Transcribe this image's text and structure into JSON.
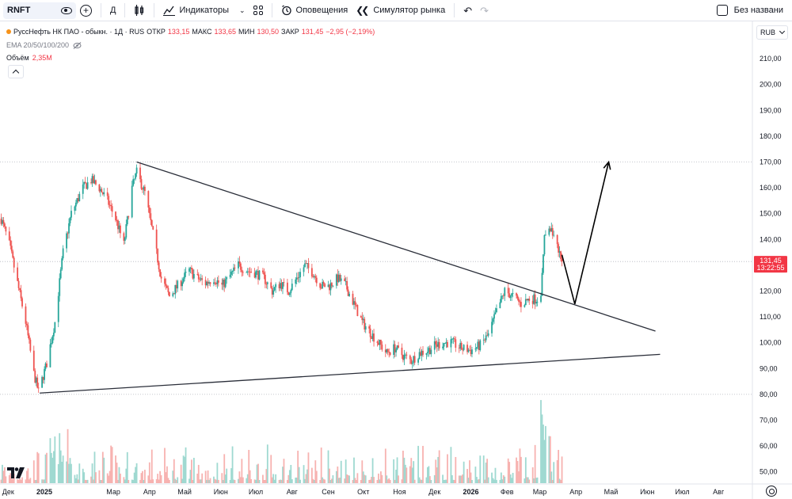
{
  "toolbar": {
    "symbol": "RNFT",
    "interval": "Д",
    "indicators_label": "Индикаторы",
    "alerts_label": "Оповещения",
    "replay_label": "Симулятор рынка",
    "hide_label": "Без названи"
  },
  "legend": {
    "title": "РуссНефть НК ПАО - обыкн. · 1Д · RUS",
    "open_label": "ОТКР",
    "open": "133,15",
    "high_label": "МАКС",
    "high": "133,65",
    "low_label": "МИН",
    "low": "130,50",
    "close_label": "ЗАКР",
    "close": "131,45",
    "change": "−2,95 (−2,19%)",
    "ema_label": "EMA 20/50/100/200",
    "volume_label": "Объём",
    "volume_value": "2,35M"
  },
  "price_scale": {
    "currency": "RUB",
    "last_price": "131,45",
    "countdown": "13:22:55"
  },
  "colors": {
    "up": "#26a69a",
    "down": "#ef5350",
    "up_volume": "#9fd9d1",
    "down_volume": "#f7b2b0",
    "trendline": "#2a2e39",
    "badge": "#f23645"
  },
  "icons": [
    "eye-icon",
    "add-compare-icon",
    "candles-icon",
    "indicators-icon",
    "chevron-down-icon",
    "layouts-icon",
    "alert-icon",
    "replay-icon",
    "undo-icon",
    "redo-icon",
    "checkbox-icon",
    "eye-crossed-icon",
    "chevron-up-icon",
    "tradingview-logo-icon",
    "settings-icon"
  ],
  "chart_data": {
    "type": "candlestick",
    "title": "РуссНефть НК ПАО - обыкн. · 1Д · RUS",
    "y_axis": {
      "ticks": [
        "50,00",
        "60,00",
        "70,00",
        "80,00",
        "90,00",
        "100,00",
        "110,00",
        "120,00",
        "130,00",
        "140,00",
        "150,00",
        "160,00",
        "170,00",
        "180,00",
        "190,00",
        "200,00",
        "210,00"
      ],
      "range": [
        45,
        218
      ]
    },
    "x_axis": {
      "labels": [
        "Дек",
        "2025",
        "Мар",
        "Апр",
        "Май",
        "Июн",
        "Июл",
        "Авг",
        "Сен",
        "Окт",
        "Ноя",
        "Дек",
        "2026",
        "Фев",
        "Мар",
        "Апр",
        "Май",
        "Июн",
        "Июл",
        "Авг"
      ],
      "range": [
        "2024-11-24",
        "2026-08-30"
      ]
    },
    "price_path": [
      [
        "2024-11-25",
        148
      ],
      [
        "2024-12-02",
        138
      ],
      [
        "2024-12-09",
        123
      ],
      [
        "2024-12-16",
        108
      ],
      [
        "2024-12-23",
        88
      ],
      [
        "2024-12-27",
        81
      ],
      [
        "2025-01-03",
        92
      ],
      [
        "2025-01-10",
        108
      ],
      [
        "2025-01-17",
        135
      ],
      [
        "2025-01-24",
        150
      ],
      [
        "2025-02-03",
        160
      ],
      [
        "2025-02-10",
        163
      ],
      [
        "2025-02-17",
        160
      ],
      [
        "2025-02-24",
        155
      ],
      [
        "2025-03-03",
        148
      ],
      [
        "2025-03-10",
        138
      ],
      [
        "2025-03-17",
        160
      ],
      [
        "2025-03-21",
        166
      ],
      [
        "2025-03-28",
        158
      ],
      [
        "2025-04-04",
        142
      ],
      [
        "2025-04-11",
        125
      ],
      [
        "2025-04-18",
        118
      ],
      [
        "2025-04-25",
        122
      ],
      [
        "2025-05-05",
        128
      ],
      [
        "2025-05-12",
        125
      ],
      [
        "2025-05-19",
        123
      ],
      [
        "2025-05-26",
        125
      ],
      [
        "2025-06-02",
        122
      ],
      [
        "2025-06-09",
        126
      ],
      [
        "2025-06-16",
        130
      ],
      [
        "2025-06-23",
        128
      ],
      [
        "2025-07-01",
        127
      ],
      [
        "2025-07-08",
        125
      ],
      [
        "2025-07-15",
        120
      ],
      [
        "2025-07-22",
        123
      ],
      [
        "2025-07-29",
        120
      ],
      [
        "2025-08-05",
        125
      ],
      [
        "2025-08-12",
        130
      ],
      [
        "2025-08-19",
        127
      ],
      [
        "2025-08-26",
        122
      ],
      [
        "2025-09-02",
        122
      ],
      [
        "2025-09-09",
        125
      ],
      [
        "2025-09-16",
        122
      ],
      [
        "2025-09-23",
        115
      ],
      [
        "2025-09-30",
        108
      ],
      [
        "2025-10-07",
        104
      ],
      [
        "2025-10-14",
        100
      ],
      [
        "2025-10-21",
        96
      ],
      [
        "2025-10-28",
        98
      ],
      [
        "2025-11-04",
        95
      ],
      [
        "2025-11-11",
        93
      ],
      [
        "2025-11-18",
        96
      ],
      [
        "2025-11-25",
        97
      ],
      [
        "2025-12-02",
        99
      ],
      [
        "2025-12-09",
        100
      ],
      [
        "2025-12-16",
        100
      ],
      [
        "2025-12-23",
        98
      ],
      [
        "2026-01-01",
        97
      ],
      [
        "2026-01-09",
        99
      ],
      [
        "2026-01-16",
        103
      ],
      [
        "2026-01-23",
        112
      ],
      [
        "2026-01-30",
        120
      ],
      [
        "2026-02-06",
        118
      ],
      [
        "2026-02-13",
        115
      ],
      [
        "2026-02-20",
        117
      ],
      [
        "2026-02-27",
        117
      ],
      [
        "2026-03-02",
        120
      ],
      [
        "2026-03-05",
        140
      ],
      [
        "2026-03-09",
        145
      ],
      [
        "2026-03-13",
        140
      ],
      [
        "2026-03-18",
        134
      ],
      [
        "2026-03-20",
        131.45
      ]
    ],
    "key_levels": [
      170,
      131.45
    ],
    "annotations": [
      {
        "type": "trendline",
        "name": "upper-trendline",
        "from": [
          "2025-03-21",
          170
        ],
        "to": [
          "2026-06-08",
          104.5
        ]
      },
      {
        "type": "trendline",
        "name": "lower-trendline",
        "from": [
          "2024-12-28",
          80.5
        ],
        "to": [
          "2026-06-12",
          95.5
        ]
      },
      {
        "type": "polyline",
        "name": "projection-arrow",
        "points": [
          [
            "2026-03-20",
            134
          ],
          [
            "2026-03-31",
            115
          ],
          [
            "2026-04-29",
            170
          ]
        ]
      }
    ]
  }
}
